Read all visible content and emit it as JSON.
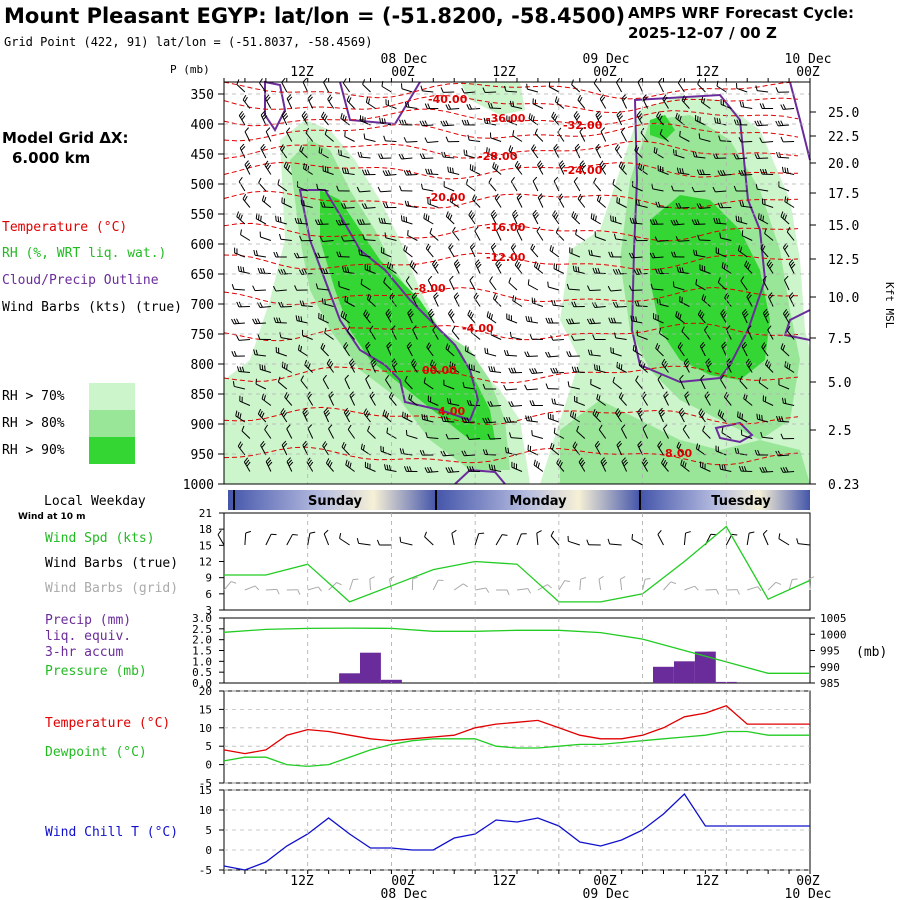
{
  "header": {
    "title": "Mount Pleasant EGYP:  lat/lon = (-51.8200, -58.4500)",
    "grid_point": "Grid Point (422, 91) lat/lon = (-51.8037, -58.4569)",
    "cycle_line1": "AMPS WRF Forecast Cycle:",
    "cycle_line2": "2025-12-07 / 00  Z"
  },
  "sidebar": {
    "model_grid_label": "Model Grid ΔX:",
    "model_grid_value": "6.000 km",
    "legend_temperature": "Temperature (°C)",
    "legend_rh": "RH (%, WRT liq. wat.)",
    "legend_cloud": "Cloud/Precip Outline",
    "legend_wind": "Wind Barbs (kts) (true)",
    "rh_levels": [
      {
        "label": "RH > 70%",
        "color": "#ccf5cc"
      },
      {
        "label": "RH > 80%",
        "color": "#99e699"
      },
      {
        "label": "RH > 90%",
        "color": "#33d633"
      }
    ],
    "local_weekday": "Local Weekday",
    "wind_at": "Wind at 10 m"
  },
  "time_axis": {
    "top_dates": [
      "08 Dec",
      "09 Dec",
      "10 Dec"
    ],
    "top_hours": [
      "12Z",
      "00Z",
      "12Z",
      "00Z",
      "12Z",
      "00Z"
    ],
    "bottom_hours": [
      "12Z",
      "00Z",
      "12Z",
      "00Z",
      "12Z",
      "00Z"
    ],
    "bottom_dates": [
      "08 Dec",
      "09 Dec",
      "10 Dec"
    ],
    "weekdays": [
      "Sunday",
      "Monday",
      "Tuesday"
    ]
  },
  "chart_data": [
    {
      "type": "heatmap",
      "title": "Time-height cross section",
      "ylabel": "P (mb)",
      "ylabel_right": "Kft MSL",
      "pressure_ticks": [
        "350",
        "400",
        "450",
        "500",
        "550",
        "600",
        "650",
        "700",
        "750",
        "800",
        "850",
        "900",
        "950",
        "1000"
      ],
      "height_ticks": [
        "25.0",
        "22.5",
        "20.0",
        "17.5",
        "15.0",
        "12.5",
        "10.0",
        "7.5",
        "5.0",
        "2.5",
        "0.23"
      ],
      "isotherm_labels": [
        "-40.00",
        "-36.00",
        "-32.00",
        "-28.00",
        "-24.00",
        "-20.00",
        "-16.00",
        "-12.00",
        "-8.00",
        "-4.00",
        "00.00",
        "4.00",
        "8.00"
      ],
      "colors": {
        "isotherm": "#e00000",
        "cloud_outline": "#6a2c9a",
        "rh70": "#ccf5cc",
        "rh80": "#99e699",
        "rh90": "#33d633"
      }
    },
    {
      "type": "line",
      "title": "Wind Spd (kts)",
      "legend": [
        "Wind Spd (kts)",
        "Wind Barbs (true)",
        "Wind Barbs (grid)"
      ],
      "yticks": [
        "21",
        "18",
        "15",
        "12",
        "9",
        "6",
        "3"
      ],
      "ylim": [
        3,
        21
      ],
      "x_hours": [
        0,
        6,
        12,
        18,
        24,
        30,
        36,
        42,
        48,
        54,
        60,
        66,
        72,
        78,
        84
      ],
      "values": [
        9.5,
        9.5,
        11.5,
        4.5,
        7.5,
        10.5,
        12,
        11.5,
        4.5,
        4.5,
        6,
        12,
        18.5,
        5,
        8.5
      ],
      "color": "#22cc22"
    },
    {
      "type": "bar",
      "title": "Precip (mm) liq. equiv. 3-hr accum / Pressure (mb)",
      "legend": [
        "Precip (mm)",
        "liq. equiv.",
        "3-hr accum",
        "Pressure (mb)"
      ],
      "yticks_left": [
        "3.0",
        "2.5",
        "2.0",
        "1.5",
        "1.0",
        "0.5",
        "0.0"
      ],
      "yticks_right": [
        "1005",
        "1000",
        "995",
        "990",
        "985"
      ],
      "ylabel_right": "(mb)",
      "ylim_left": [
        0,
        3
      ],
      "ylim_right": [
        985,
        1005
      ],
      "precip_hours": [
        18,
        21,
        24,
        63,
        66,
        69,
        72
      ],
      "precip_values": [
        0.45,
        1.4,
        0.15,
        0.75,
        1.0,
        1.45,
        0.05
      ],
      "pressure_hours": [
        0,
        6,
        12,
        18,
        24,
        30,
        36,
        42,
        48,
        54,
        60,
        66,
        72,
        78,
        84
      ],
      "pressure_values": [
        1000.6,
        1001.5,
        1001.8,
        1001.9,
        1001.8,
        1000.9,
        1000.9,
        1001.2,
        1001.2,
        1000.5,
        998.5,
        995.0,
        991.5,
        988.0,
        988.0
      ],
      "colors": {
        "precip": "#6a2c9a",
        "pressure": "#22cc22"
      }
    },
    {
      "type": "line",
      "title": "Temperature / Dewpoint (°C)",
      "legend": [
        "Temperature (°C)",
        "Dewpoint (°C)"
      ],
      "yticks": [
        "20",
        "15",
        "10",
        "5",
        "0",
        "-5"
      ],
      "ylim": [
        -5,
        20
      ],
      "x_hours": [
        0,
        3,
        6,
        9,
        12,
        15,
        18,
        21,
        24,
        27,
        30,
        33,
        36,
        39,
        42,
        45,
        48,
        51,
        54,
        57,
        60,
        63,
        66,
        69,
        72,
        75,
        78,
        81,
        84
      ],
      "series": [
        {
          "name": "Temperature (°C)",
          "color": "#e00000",
          "values": [
            4,
            3,
            4,
            8,
            9.5,
            9,
            8,
            7,
            6.5,
            7,
            7.5,
            8,
            10,
            11,
            11.5,
            12,
            10,
            8,
            7,
            7,
            8,
            10,
            13,
            14,
            16,
            11,
            11,
            11,
            11
          ]
        },
        {
          "name": "Dewpoint (°C)",
          "color": "#22cc22",
          "values": [
            1,
            2,
            2,
            0,
            -0.5,
            0,
            2,
            4,
            5.5,
            6.5,
            7,
            7,
            7,
            5,
            4.5,
            4.5,
            5,
            5.5,
            5.5,
            6,
            6.5,
            7,
            7.5,
            8,
            9,
            9,
            8,
            8,
            8
          ]
        }
      ]
    },
    {
      "type": "line",
      "title": "Wind Chill T (°C)",
      "legend": [
        "Wind Chill T (°C)"
      ],
      "yticks": [
        "15",
        "10",
        "5",
        "0",
        "-5"
      ],
      "ylim": [
        -5,
        15
      ],
      "x_hours": [
        0,
        3,
        6,
        9,
        12,
        15,
        18,
        21,
        24,
        27,
        30,
        33,
        36,
        39,
        42,
        45,
        48,
        51,
        54,
        57,
        60,
        63,
        66,
        69,
        72,
        75,
        78,
        81,
        84
      ],
      "values": [
        -4,
        -5,
        -3,
        1,
        4,
        8,
        4,
        0.5,
        0.5,
        0,
        0,
        3,
        4,
        7.5,
        7,
        8,
        6,
        2,
        1,
        2.5,
        5,
        9,
        14,
        6,
        6,
        6,
        6,
        6,
        6
      ],
      "color": "#1010cc"
    }
  ]
}
